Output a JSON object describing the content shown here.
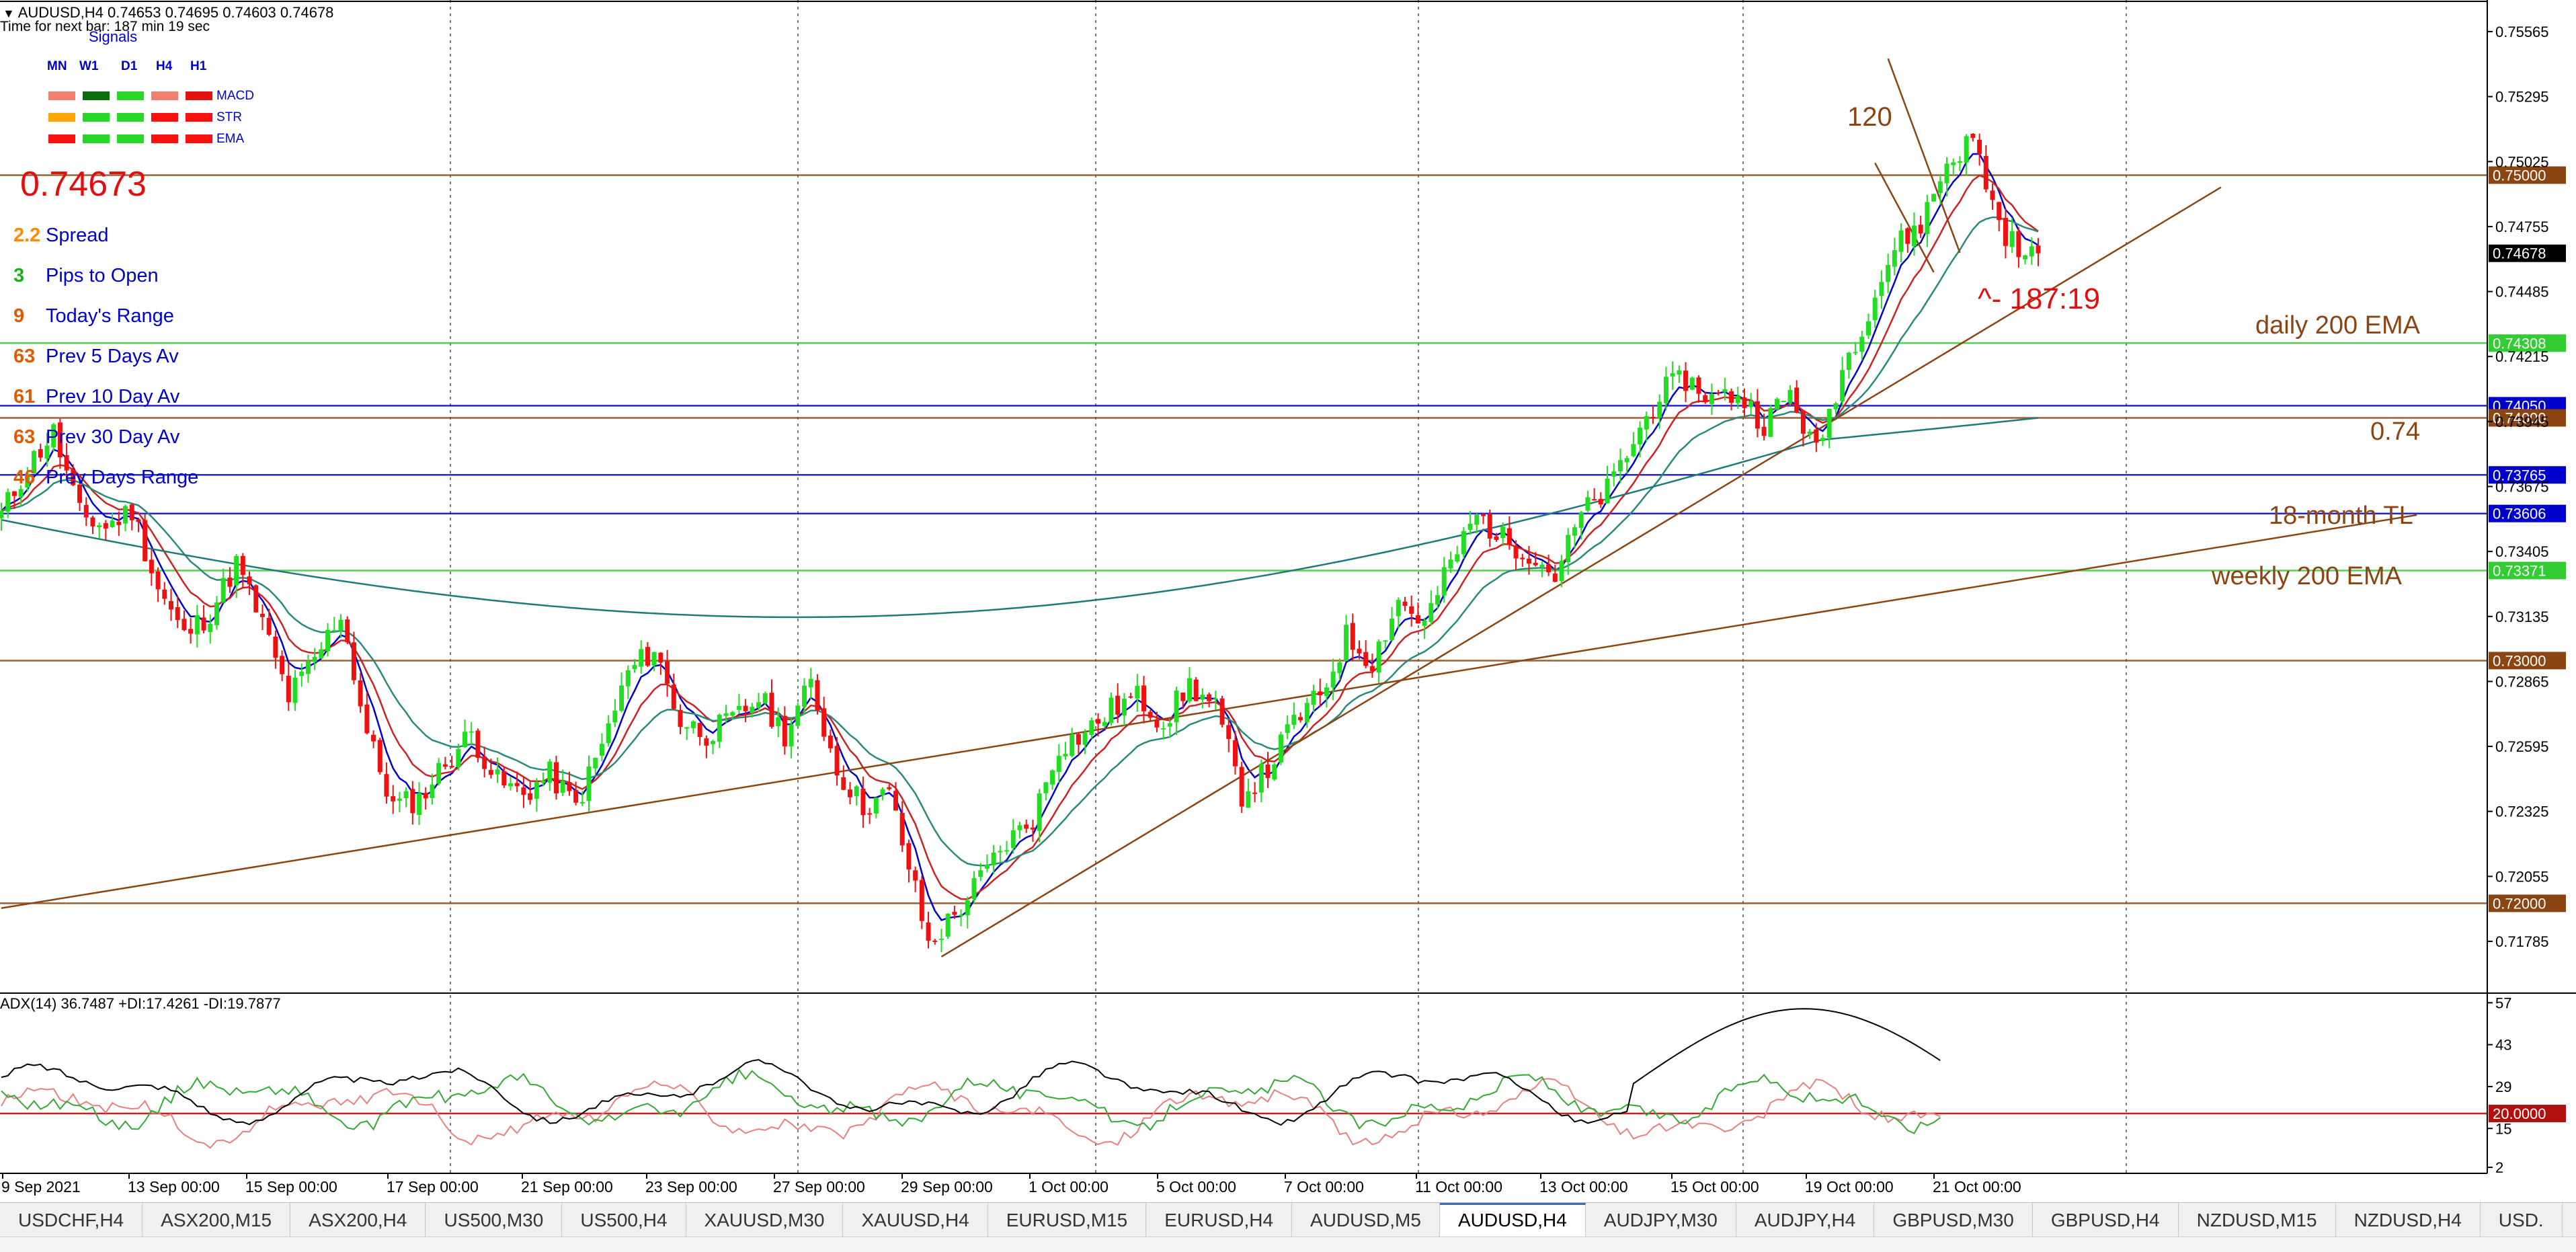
{
  "header": {
    "title": "AUDUSD,H4  0.74653 0.74695 0.74603 0.74678",
    "timer": "Time for next bar: 187 min 19 sec"
  },
  "signals": {
    "title": "Signals",
    "timeframes": [
      "MN",
      "W1",
      "D1",
      "H4",
      "H1"
    ],
    "rows": [
      {
        "label": "MACD",
        "colors": [
          "#f07f6f",
          "#0a6e0a",
          "#2bd62b",
          "#f07f6f",
          "#e01212"
        ]
      },
      {
        "label": "STR",
        "colors": [
          "#ffa500",
          "#27d827",
          "#27d827",
          "#ff1010",
          "#ff1010"
        ]
      },
      {
        "label": "EMA",
        "colors": [
          "#ff1010",
          "#27d827",
          "#27d827",
          "#ff1010",
          "#ff1010"
        ]
      }
    ]
  },
  "price_big": "0.74673",
  "stats": [
    {
      "value": "2.2",
      "label": "Spread",
      "color": "#ff8c00"
    },
    {
      "value": "3",
      "label": "Pips to Open",
      "color": "#1ab01a"
    },
    {
      "value": "9",
      "label": "Today's Range",
      "color": "#e05a00"
    },
    {
      "value": "63",
      "label": "Prev 5 Days Av",
      "color": "#e05a00"
    },
    {
      "value": "61",
      "label": "Prev 10 Day Av",
      "color": "#e05a00"
    },
    {
      "value": "63",
      "label": "Prev 30 Day Av",
      "color": "#e05a00"
    },
    {
      "value": "46",
      "label": "Prev Days Range",
      "color": "#e05a00"
    }
  ],
  "annotations": {
    "count": "120",
    "timer_big": "^- 187:19",
    "daily_ema": "daily 200 EMA",
    "level_074": "0.74",
    "tl_18m": "18-month TL",
    "weekly_ema": "weekly 200 EMA"
  },
  "chart_data": {
    "type": "candlestick",
    "symbol": "AUDUSD",
    "timeframe": "H4",
    "ohlc_last": {
      "open": 0.74653,
      "high": 0.74695,
      "low": 0.74603,
      "close": 0.74678
    },
    "price_axis_ticks": [
      "0.75565",
      "0.75295",
      "0.75025",
      "0.74755",
      "0.74485",
      "0.74215",
      "0.73945",
      "0.73675",
      "0.73405",
      "0.73135",
      "0.72865",
      "0.72595",
      "0.72325",
      "0.72055",
      "0.71785"
    ],
    "price_ylim": [
      0.7163,
      0.7568
    ],
    "horizontal_levels": [
      {
        "label": "0.75000",
        "value": 0.75,
        "color": "#8b4513"
      },
      {
        "label": "0.74678",
        "value": 0.74678,
        "color": "#000000"
      },
      {
        "label": "0.74308",
        "value": 0.74308,
        "color": "#33cc33"
      },
      {
        "label": "0.74050",
        "value": 0.7405,
        "color": "#0000cc"
      },
      {
        "label": "0.74000",
        "value": 0.74,
        "color": "#8b4513"
      },
      {
        "label": "0.73765",
        "value": 0.73765,
        "color": "#0000cc"
      },
      {
        "label": "0.73606",
        "value": 0.73606,
        "color": "#0000cc"
      },
      {
        "label": "0.73371",
        "value": 0.73371,
        "color": "#33cc33"
      },
      {
        "label": "0.73000",
        "value": 0.73,
        "color": "#8b4513"
      },
      {
        "label": "0.72000",
        "value": 0.72,
        "color": "#8b4513"
      }
    ],
    "time_labels": [
      "9 Sep 2021",
      "13 Sep 00:00",
      "15 Sep 00:00",
      "17 Sep 00:00",
      "21 Sep 00:00",
      "23 Sep 00:00",
      "27 Sep 00:00",
      "29 Sep 00:00",
      "1 Oct 00:00",
      "5 Oct 00:00",
      "7 Oct 00:00",
      "11 Oct 00:00",
      "13 Oct 00:00",
      "15 Oct 00:00",
      "19 Oct 00:00",
      "21 Oct 00:00"
    ],
    "price_path": [
      [
        0,
        0.736
      ],
      [
        4,
        0.738
      ],
      [
        8,
        0.7394
      ],
      [
        12,
        0.736
      ],
      [
        16,
        0.7355
      ],
      [
        20,
        0.7362
      ],
      [
        24,
        0.733
      ],
      [
        28,
        0.731
      ],
      [
        32,
        0.732
      ],
      [
        36,
        0.734
      ],
      [
        40,
        0.7315
      ],
      [
        44,
        0.7285
      ],
      [
        48,
        0.73
      ],
      [
        52,
        0.732
      ],
      [
        56,
        0.727
      ],
      [
        60,
        0.724
      ],
      [
        64,
        0.7243
      ],
      [
        68,
        0.7258
      ],
      [
        72,
        0.727
      ],
      [
        76,
        0.725
      ],
      [
        80,
        0.7245
      ],
      [
        84,
        0.7253
      ],
      [
        88,
        0.724
      ],
      [
        92,
        0.7265
      ],
      [
        96,
        0.7295
      ],
      [
        100,
        0.7305
      ],
      [
        104,
        0.7275
      ],
      [
        108,
        0.727
      ],
      [
        112,
        0.7275
      ],
      [
        116,
        0.7285
      ],
      [
        120,
        0.727
      ],
      [
        124,
        0.729
      ],
      [
        128,
        0.7255
      ],
      [
        132,
        0.724
      ],
      [
        136,
        0.7245
      ],
      [
        140,
        0.7205
      ],
      [
        142,
        0.7183
      ],
      [
        146,
        0.7195
      ],
      [
        150,
        0.721
      ],
      [
        154,
        0.7225
      ],
      [
        158,
        0.7235
      ],
      [
        162,
        0.7265
      ],
      [
        166,
        0.727
      ],
      [
        170,
        0.728
      ],
      [
        174,
        0.7285
      ],
      [
        178,
        0.7275
      ],
      [
        182,
        0.729
      ],
      [
        186,
        0.728
      ],
      [
        190,
        0.7245
      ],
      [
        194,
        0.7255
      ],
      [
        198,
        0.7275
      ],
      [
        202,
        0.7285
      ],
      [
        206,
        0.731
      ],
      [
        210,
        0.73
      ],
      [
        214,
        0.7325
      ],
      [
        218,
        0.7315
      ],
      [
        222,
        0.734
      ],
      [
        226,
        0.736
      ],
      [
        230,
        0.735
      ],
      [
        234,
        0.7345
      ],
      [
        238,
        0.7335
      ],
      [
        242,
        0.736
      ],
      [
        246,
        0.737
      ],
      [
        250,
        0.739
      ],
      [
        254,
        0.741
      ],
      [
        258,
        0.7416
      ],
      [
        262,
        0.7408
      ],
      [
        266,
        0.741
      ],
      [
        270,
        0.7398
      ],
      [
        274,
        0.741
      ],
      [
        278,
        0.7385
      ],
      [
        282,
        0.742
      ],
      [
        286,
        0.7445
      ],
      [
        290,
        0.747
      ],
      [
        294,
        0.748
      ],
      [
        298,
        0.7505
      ],
      [
        302,
        0.7515
      ],
      [
        306,
        0.748
      ],
      [
        310,
        0.7465
      ],
      [
        312,
        0.7468
      ]
    ],
    "trend_lines": [
      {
        "name": "18-month TL",
        "from": [
          0,
          0.7198
        ],
        "to": [
          370,
          0.736
        ]
      },
      {
        "name": "rising TL",
        "from": [
          144,
          0.7178
        ],
        "to": [
          340,
          0.7495
        ]
      },
      {
        "name": "wedge upper",
        "from": [
          289,
          0.7548
        ],
        "to": [
          300,
          0.7468
        ]
      },
      {
        "name": "wedge lower",
        "from": [
          287,
          0.7505
        ],
        "to": [
          296,
          0.746
        ]
      }
    ],
    "indicator": {
      "name": "ADX(14)",
      "header": "ADX(14) 36.7487 +DI:17.4261 -DI:19.7877",
      "ticks": [
        "57",
        "43",
        "29",
        "15",
        "2"
      ],
      "level_label": "20.0000",
      "level": 20,
      "ylim": [
        0,
        60
      ]
    }
  },
  "tabs": [
    {
      "label": "USDCHF,H4"
    },
    {
      "label": "ASX200,M15"
    },
    {
      "label": "ASX200,H4"
    },
    {
      "label": "US500,M30"
    },
    {
      "label": "US500,H4"
    },
    {
      "label": "XAUUSD,M30"
    },
    {
      "label": "XAUUSD,H4"
    },
    {
      "label": "EURUSD,M15"
    },
    {
      "label": "EURUSD,H4"
    },
    {
      "label": "AUDUSD,M5"
    },
    {
      "label": "AUDUSD,H4",
      "active": true
    },
    {
      "label": "AUDJPY,M30"
    },
    {
      "label": "AUDJPY,H4"
    },
    {
      "label": "GBPUSD,M30"
    },
    {
      "label": "GBPUSD,H4"
    },
    {
      "label": "NZDUSD,M15"
    },
    {
      "label": "NZDUSD,H4"
    },
    {
      "label": "USD."
    }
  ],
  "colors": {
    "bull": "#22dd22",
    "bear": "#ee1111",
    "ema_fast": "#0000cc",
    "ema_mid": "#cc2222",
    "ema_slow": "#2a8a7a",
    "ema_200": "#1f7a7a",
    "trendline": "#8b4513"
  }
}
